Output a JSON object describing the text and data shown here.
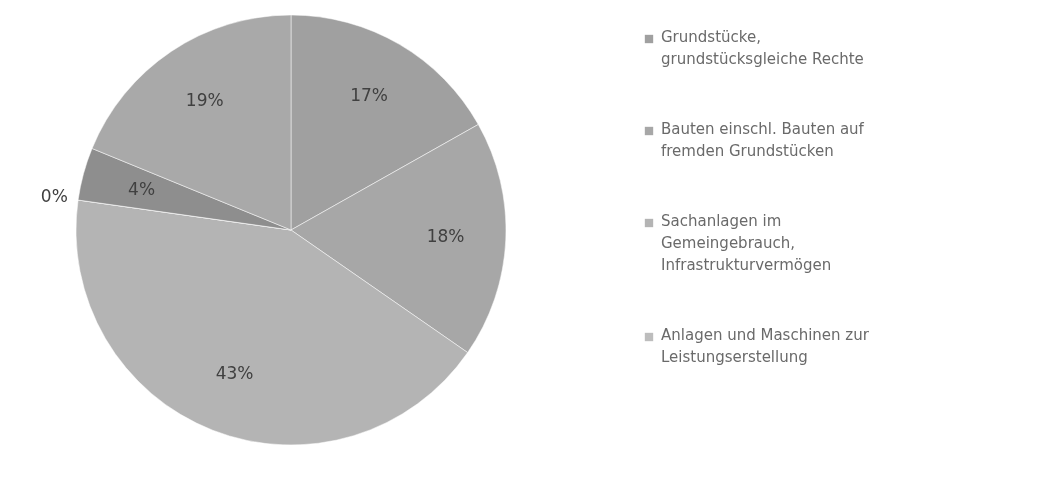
{
  "chart_data": {
    "type": "pie",
    "categories": [
      "Grundstücke, grundstücksgleiche Rechte",
      "Bauten einschl. Bauten auf fremden Grundstücken",
      "Sachanlagen im Gemeingebrauch, Infrastrukturvermögen",
      "Anlagen und Maschinen zur Leistungserstellung",
      null,
      null
    ],
    "values": [
      17,
      18,
      43,
      0,
      4,
      19
    ],
    "value_labels": [
      "17%",
      "18%",
      "43%",
      "0%",
      "4%",
      "19%"
    ],
    "colors": [
      "#a0a0a0",
      "#a7a7a7",
      "#b4b4b4",
      "#bdbdbd",
      "#8e8e8e",
      "#a9a9a9"
    ],
    "legend": "right"
  }
}
